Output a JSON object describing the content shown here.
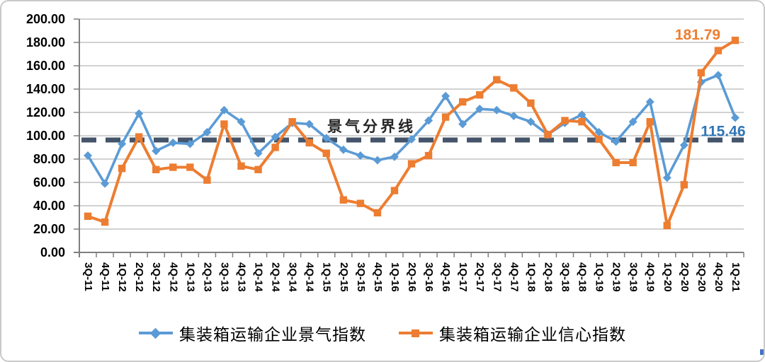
{
  "chart_data": {
    "type": "line",
    "title": "",
    "categories": [
      "3Q-11",
      "4Q-11",
      "1Q-12",
      "2Q-12",
      "3Q-12",
      "4Q-12",
      "1Q-13",
      "2Q-13",
      "3Q-13",
      "4Q-13",
      "1Q-14",
      "2Q-14",
      "3Q-14",
      "4Q-14",
      "1Q-15",
      "2Q-15",
      "3Q-15",
      "4Q-15",
      "1Q-16",
      "2Q-16",
      "3Q-16",
      "4Q-16",
      "1Q-17",
      "2Q-17",
      "3Q-17",
      "4Q-17",
      "1Q-18",
      "2Q-18",
      "3Q-18",
      "4Q-18",
      "1Q-19",
      "2Q-19",
      "3Q-19",
      "4Q-19",
      "1Q-20",
      "2Q-20",
      "3Q-20",
      "4Q-20",
      "1Q-21"
    ],
    "series": [
      {
        "name": "集装箱运输企业景气指数",
        "color": "#5B9BD5",
        "marker": "diamond",
        "values": [
          83,
          59,
          93,
          119,
          87,
          94,
          93,
          103,
          122,
          112,
          85,
          99,
          111,
          110,
          98,
          88,
          83,
          79,
          82,
          97,
          113,
          134,
          110,
          123,
          122,
          117,
          112,
          101,
          111,
          118,
          103,
          95,
          112,
          129,
          64,
          92,
          146,
          152,
          115.46
        ]
      },
      {
        "name": "集装箱运输企业信心指数",
        "color": "#ED7D31",
        "marker": "square",
        "values": [
          31,
          26,
          72,
          99,
          71,
          73,
          73,
          62,
          110,
          74,
          71,
          90,
          112,
          94,
          85,
          45,
          42,
          34,
          53,
          76,
          83,
          116,
          129,
          135,
          148,
          141,
          128,
          101,
          113,
          112,
          97,
          77,
          77,
          112,
          23,
          58,
          154,
          173,
          181.79
        ]
      }
    ],
    "ylim": [
      0,
      200
    ],
    "ytick_step": 20,
    "yticks": [
      "0.00",
      "20.00",
      "40.00",
      "60.00",
      "80.00",
      "100.00",
      "120.00",
      "140.00",
      "160.00",
      "180.00",
      "200.00"
    ],
    "grid": true,
    "legend_position": "bottom",
    "boundary_line": {
      "label": "景气分界线",
      "value": 100,
      "color": "#44546A",
      "style": "dashed"
    },
    "annotations": [
      {
        "text": "181.79",
        "series": "集装箱运输企业信心指数",
        "color": "#ED7D31"
      },
      {
        "text": "115.46",
        "series": "集装箱运输企业景气指数",
        "color": "#2E75B6"
      }
    ]
  }
}
